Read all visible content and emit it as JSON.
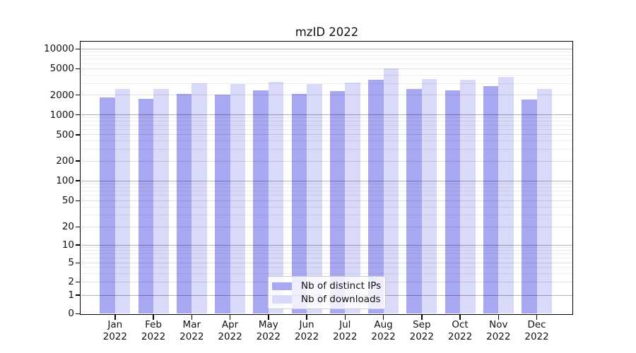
{
  "chart_data": {
    "type": "bar",
    "title": "mzID 2022",
    "categories": [
      "Jan",
      "Feb",
      "Mar",
      "Apr",
      "May",
      "Jun",
      "Jul",
      "Aug",
      "Sep",
      "Oct",
      "Nov",
      "Dec"
    ],
    "category_year": "2022",
    "series": [
      {
        "name": "Nb of distinct IPs",
        "color": "#a8a8f2",
        "values": [
          1850,
          1750,
          2100,
          2050,
          2350,
          2100,
          2300,
          3400,
          2500,
          2350,
          2700,
          1700
        ]
      },
      {
        "name": "Nb of downloads",
        "color": "#d9d9f9",
        "values": [
          2450,
          2500,
          3000,
          2950,
          3200,
          2950,
          3050,
          5100,
          3500,
          3400,
          3800,
          2500
        ]
      }
    ],
    "yscale": "symlog",
    "y_ticks": [
      0,
      1,
      2,
      5,
      10,
      20,
      50,
      100,
      200,
      500,
      1000,
      2000,
      5000,
      10000
    ],
    "ylim": [
      0,
      13000
    ],
    "xlabel": "",
    "ylabel": "",
    "grid": "major+minor",
    "legend_position": "lower center inside"
  },
  "style": {
    "bar_color_distinct_ips": "#a8a8f2",
    "bar_color_downloads": "#d9d9f9",
    "grid_decade_color": "rgba(0,0,0,0.30)",
    "grid_labeled_color": "rgba(0,0,0,0.12)",
    "grid_minor_color": "rgba(0,0,0,0.07)",
    "axis_color": "#000000",
    "background_color": "#ffffff"
  }
}
